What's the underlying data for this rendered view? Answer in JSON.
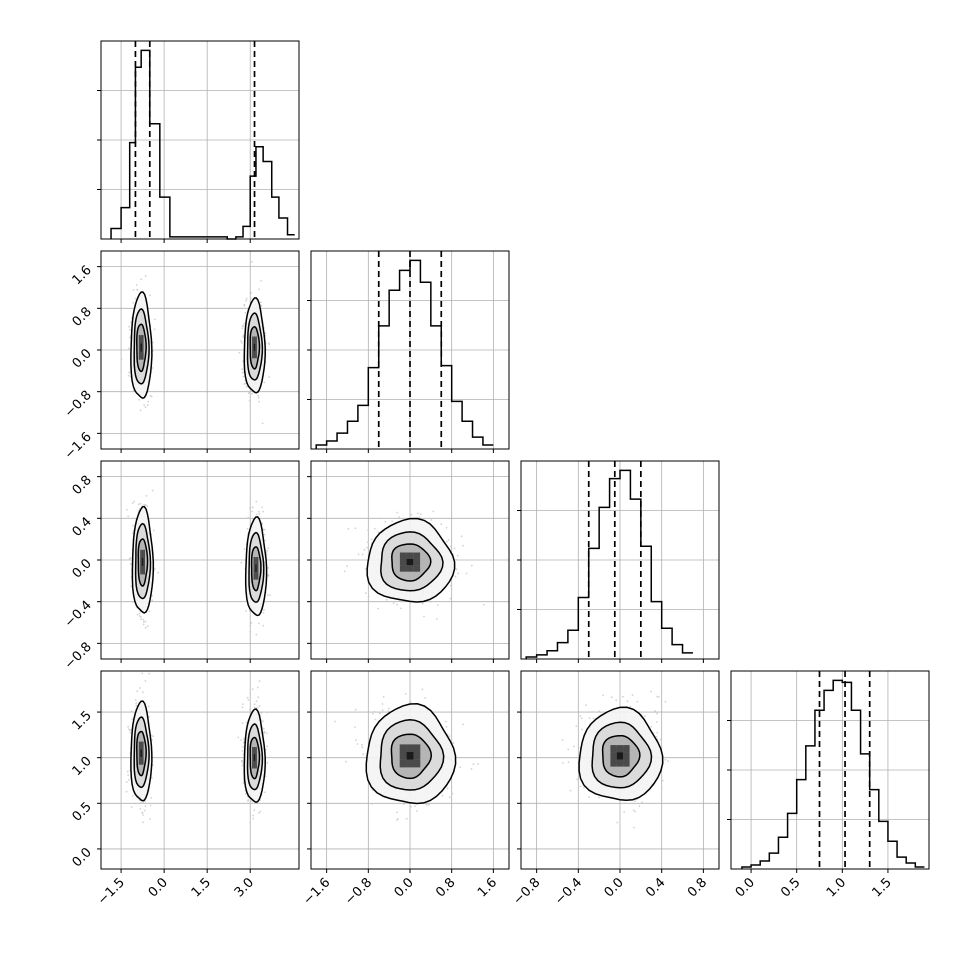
{
  "chart_data": {
    "type": "corner",
    "n_params": 4,
    "grid": true,
    "scatter_color": "#c8c8c8",
    "line_color": "#000000",
    "axes": [
      {
        "lim": [
          -2.2,
          4.7
        ],
        "ticks": [
          -1.5,
          0.0,
          1.5,
          3.0
        ],
        "tick_labels": [
          "−1.5",
          "0.0",
          "1.5",
          "3.0"
        ]
      },
      {
        "lim": [
          -1.9,
          1.9
        ],
        "ticks": [
          -1.6,
          -0.8,
          0.0,
          0.8,
          1.6
        ],
        "tick_labels": [
          "−1.6",
          "−0.8",
          "0.0",
          "0.8",
          "1.6"
        ]
      },
      {
        "lim": [
          -0.95,
          0.95
        ],
        "ticks": [
          -0.8,
          -0.4,
          0.0,
          0.4,
          0.8
        ],
        "tick_labels": [
          "−0.8",
          "−0.4",
          "0.0",
          "0.4",
          "0.8"
        ]
      },
      {
        "lim": [
          -0.22,
          1.95
        ],
        "ticks": [
          0.0,
          0.5,
          1.0,
          1.5
        ],
        "tick_labels": [
          "0.0",
          "0.5",
          "1.0",
          "1.5"
        ]
      }
    ],
    "marginals": [
      {
        "bin_edges": [
          -1.85,
          -1.5,
          -1.2,
          -1.0,
          -0.8,
          -0.5,
          -0.15,
          0.2,
          2.2,
          2.5,
          2.75,
          3.0,
          3.2,
          3.45,
          3.75,
          4.0,
          4.3,
          4.55
        ],
        "counts": [
          0.05,
          0.15,
          0.46,
          0.82,
          0.9,
          0.55,
          0.2,
          0.01,
          0.0,
          0.01,
          0.06,
          0.3,
          0.44,
          0.37,
          0.2,
          0.1,
          0.02
        ],
        "quantiles": [
          -1.0,
          -0.5,
          3.15
        ]
      },
      {
        "bin_edges": [
          -1.8,
          -1.6,
          -1.4,
          -1.2,
          -1.0,
          -0.8,
          -0.6,
          -0.4,
          -0.2,
          0.0,
          0.2,
          0.4,
          0.6,
          0.8,
          1.0,
          1.2,
          1.4,
          1.6
        ],
        "counts": [
          0.02,
          0.04,
          0.08,
          0.14,
          0.22,
          0.41,
          0.62,
          0.8,
          0.9,
          0.95,
          0.84,
          0.62,
          0.42,
          0.24,
          0.14,
          0.06,
          0.02
        ],
        "quantiles": [
          -0.6,
          0.0,
          0.6
        ]
      },
      {
        "bin_edges": [
          -0.9,
          -0.8,
          -0.7,
          -0.6,
          -0.5,
          -0.4,
          -0.3,
          -0.2,
          -0.1,
          0.0,
          0.1,
          0.2,
          0.3,
          0.4,
          0.5,
          0.6,
          0.7
        ],
        "counts": [
          0.01,
          0.02,
          0.04,
          0.08,
          0.14,
          0.3,
          0.54,
          0.74,
          0.88,
          0.92,
          0.78,
          0.55,
          0.28,
          0.15,
          0.07,
          0.03
        ],
        "quantiles": [
          -0.3,
          -0.05,
          0.2
        ]
      },
      {
        "bin_edges": [
          -0.1,
          0.0,
          0.1,
          0.2,
          0.3,
          0.4,
          0.5,
          0.6,
          0.7,
          0.8,
          0.9,
          1.0,
          1.1,
          1.2,
          1.3,
          1.4,
          1.5,
          1.6,
          1.7,
          1.8,
          1.9
        ],
        "counts": [
          0.01,
          0.02,
          0.04,
          0.08,
          0.16,
          0.28,
          0.45,
          0.62,
          0.8,
          0.9,
          0.95,
          0.94,
          0.8,
          0.58,
          0.4,
          0.24,
          0.14,
          0.06,
          0.03,
          0.01
        ],
        "quantiles": [
          0.75,
          1.03,
          1.3
        ]
      }
    ],
    "contour_plots": [
      {
        "row": 1,
        "col": 0,
        "blobs": [
          {
            "cx": -0.8,
            "cy": 0.05,
            "sx": 0.2,
            "sy": 0.56
          },
          {
            "cx": 3.15,
            "cy": 0.05,
            "sx": 0.2,
            "sy": 0.5
          }
        ]
      },
      {
        "row": 2,
        "col": 0,
        "blobs": [
          {
            "cx": -0.75,
            "cy": -0.02,
            "sx": 0.2,
            "sy": 0.28
          },
          {
            "cx": 3.2,
            "cy": -0.08,
            "sx": 0.2,
            "sy": 0.26
          }
        ]
      },
      {
        "row": 2,
        "col": 1,
        "blobs": [
          {
            "cx": 0.0,
            "cy": -0.02,
            "sx": 0.46,
            "sy": 0.22
          }
        ]
      },
      {
        "row": 3,
        "col": 0,
        "blobs": [
          {
            "cx": -0.8,
            "cy": 1.05,
            "sx": 0.2,
            "sy": 0.3
          },
          {
            "cx": 3.15,
            "cy": 1.0,
            "sx": 0.2,
            "sy": 0.28
          }
        ]
      },
      {
        "row": 3,
        "col": 1,
        "blobs": [
          {
            "cx": 0.0,
            "cy": 1.02,
            "sx": 0.47,
            "sy": 0.3
          }
        ]
      },
      {
        "row": 3,
        "col": 2,
        "blobs": [
          {
            "cx": 0.0,
            "cy": 1.02,
            "sx": 0.22,
            "sy": 0.28
          }
        ]
      }
    ]
  }
}
